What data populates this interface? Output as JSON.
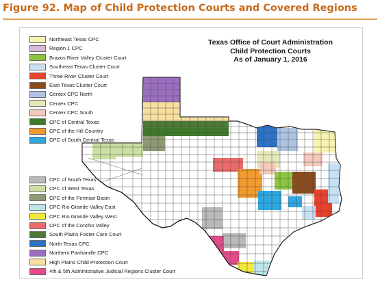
{
  "figure_title": "Figure 92. Map of Child Protection Courts and Covered Regions",
  "map_heading": {
    "line1": "Texas Office of Court Administration",
    "line2": "Child Protection Courts",
    "line3": "As of January 1, 2016"
  },
  "legend_top": [
    {
      "label": "Northeast Texas CPC",
      "color": "#f7f3b2"
    },
    {
      "label": "Region 1 CPC",
      "color": "#d9b8d8"
    },
    {
      "label": "Brazos River Valley Cluster Court",
      "color": "#8cc63f"
    },
    {
      "label": "Southeast Texas Cluster Court",
      "color": "#c7dff2"
    },
    {
      "label": "Three River Cluster Court",
      "color": "#e8412c"
    },
    {
      "label": "East Texas Cluster Court",
      "color": "#8b4a1c"
    },
    {
      "label": "Centex CPC North",
      "color": "#aec3e3"
    },
    {
      "label": "Centex CPC",
      "color": "#e5e8b8"
    },
    {
      "label": "Centex CPC South",
      "color": "#f6c9bd"
    },
    {
      "label": "CPC of Central Texas",
      "color": "#3f7a2a"
    },
    {
      "label": "CPC of the Hill Country",
      "color": "#f19a2e"
    },
    {
      "label": "CPC of South Central Texas",
      "color": "#2ea6e0"
    }
  ],
  "legend_bottom": [
    {
      "label": "CPC of South Texas",
      "color": "#b9b9b9"
    },
    {
      "label": "CPC of West Texas",
      "color": "#c9df9f"
    },
    {
      "label": "CPC of the Permian Basin",
      "color": "#8d9a74"
    },
    {
      "label": "CPC Rio Grande Valley East",
      "color": "#bde5e8"
    },
    {
      "label": "CPC Rio Grande Valley West",
      "color": "#f4e83a"
    },
    {
      "label": "CPC of the Concho Valley",
      "color": "#ec6a6a"
    },
    {
      "label": "South Plains Foster Care Court",
      "color": "#4d7a36"
    },
    {
      "label": "North Texas CPC",
      "color": "#2c73c6"
    },
    {
      "label": "Northern Panhandle CPC",
      "color": "#9b6fc0"
    },
    {
      "label": "High Plains Child Protection Court",
      "color": "#f8dfa0"
    },
    {
      "label": "4th & 5th Administrative Judicial Regions Cluster Court",
      "color": "#e8498a"
    }
  ],
  "colors": {
    "title": "#c86a1a",
    "rule": "#e3a35c",
    "county_border": "#4a4a4a",
    "state_fill": "#ffffff"
  }
}
